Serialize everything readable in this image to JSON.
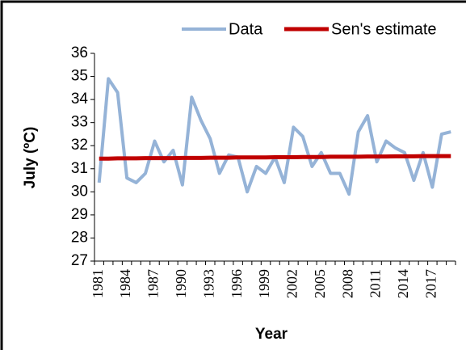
{
  "chart_data": {
    "type": "line",
    "x_label": "Year",
    "y_label": "July (ºC)",
    "categories": [
      "1981",
      null,
      null,
      "1984",
      null,
      null,
      "1987",
      null,
      null,
      "1990",
      null,
      null,
      "1993",
      null,
      null,
      "1996",
      null,
      null,
      "1999",
      null,
      null,
      "2002",
      null,
      null,
      "2005",
      null,
      null,
      "2008",
      null,
      null,
      "2011",
      null,
      null,
      "2014",
      null,
      null,
      "2017",
      null,
      null
    ],
    "series": [
      {
        "name": "Data",
        "color": "#95b3d7",
        "values": [
          30.4,
          34.9,
          34.3,
          30.6,
          30.4,
          30.8,
          32.2,
          31.3,
          31.8,
          30.3,
          34.1,
          33.1,
          32.3,
          30.8,
          31.6,
          31.5,
          30.0,
          31.1,
          30.8,
          31.5,
          30.4,
          32.8,
          32.4,
          31.1,
          31.7,
          30.8,
          30.8,
          29.9,
          32.6,
          33.3,
          31.3,
          32.2,
          31.9,
          31.7,
          30.5,
          31.7,
          30.2,
          32.5,
          32.6
        ]
      },
      {
        "name": "Sen's estimate",
        "color": "#c00000",
        "values": [
          31.44,
          31.44,
          31.45,
          31.45,
          31.45,
          31.46,
          31.46,
          31.46,
          31.46,
          31.47,
          31.47,
          31.47,
          31.48,
          31.48,
          31.48,
          31.49,
          31.49,
          31.49,
          31.49,
          31.5,
          31.5,
          31.5,
          31.51,
          31.51,
          31.51,
          31.52,
          31.52,
          31.52,
          31.52,
          31.53,
          31.53,
          31.53,
          31.54,
          31.54,
          31.54,
          31.55,
          31.55,
          31.55,
          31.55
        ]
      }
    ],
    "ylim": [
      27,
      36
    ],
    "yticks": [
      27,
      28,
      29,
      30,
      31,
      32,
      33,
      34,
      35,
      36
    ],
    "legend": "top"
  }
}
